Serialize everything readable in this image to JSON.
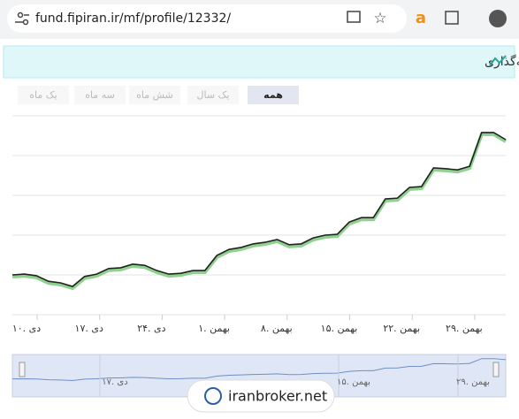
{
  "browser": {
    "url": "fund.fipiran.ir/mf/profile/12332/"
  },
  "header": {
    "title": "نمودار مقایسه قیمت صدور، ابطال و آماری واحدهای سرمایه‌گذاری"
  },
  "range_buttons": [
    {
      "label": "همه",
      "active": true
    },
    {
      "label": "یک سال",
      "active": false
    },
    {
      "label": "شش ماه",
      "active": false
    },
    {
      "label": "سه ماه",
      "active": false
    },
    {
      "label": "یک ماه",
      "active": false
    }
  ],
  "chart_data": {
    "type": "line",
    "color": "#222222",
    "glow_color": "#8fd18f",
    "values": [
      1.0,
      1.02,
      0.98,
      0.84,
      0.8,
      0.71,
      0.96,
      1.02,
      1.16,
      1.18,
      1.27,
      1.24,
      1.11,
      1.02,
      1.04,
      1.11,
      1.11,
      1.49,
      1.64,
      1.69,
      1.78,
      1.82,
      1.89,
      1.76,
      1.78,
      1.93,
      2.0,
      2.02,
      2.33,
      2.44,
      2.44,
      2.91,
      2.93,
      3.2,
      3.22,
      3.69,
      3.67,
      3.64,
      3.73,
      4.58,
      4.58,
      4.4
    ],
    "ylim": [
      0,
      5
    ],
    "yticks": [
      0,
      1,
      2,
      3,
      4,
      5
    ],
    "grid": true,
    "ytick_labels": false,
    "xtick_labels": [
      "۱۰. دی",
      "۱۷. دی",
      "۲۴. دی",
      "۱. بهمن",
      "۸. بهمن",
      "۱۵. بهمن",
      "۲۲. بهمن",
      "۲۹. بهمن"
    ],
    "navigator_labels": [
      "۱۷. دی",
      "۱۵. بهمن",
      "۲۹. بهمن"
    ]
  },
  "watermark": "iranbroker.net"
}
